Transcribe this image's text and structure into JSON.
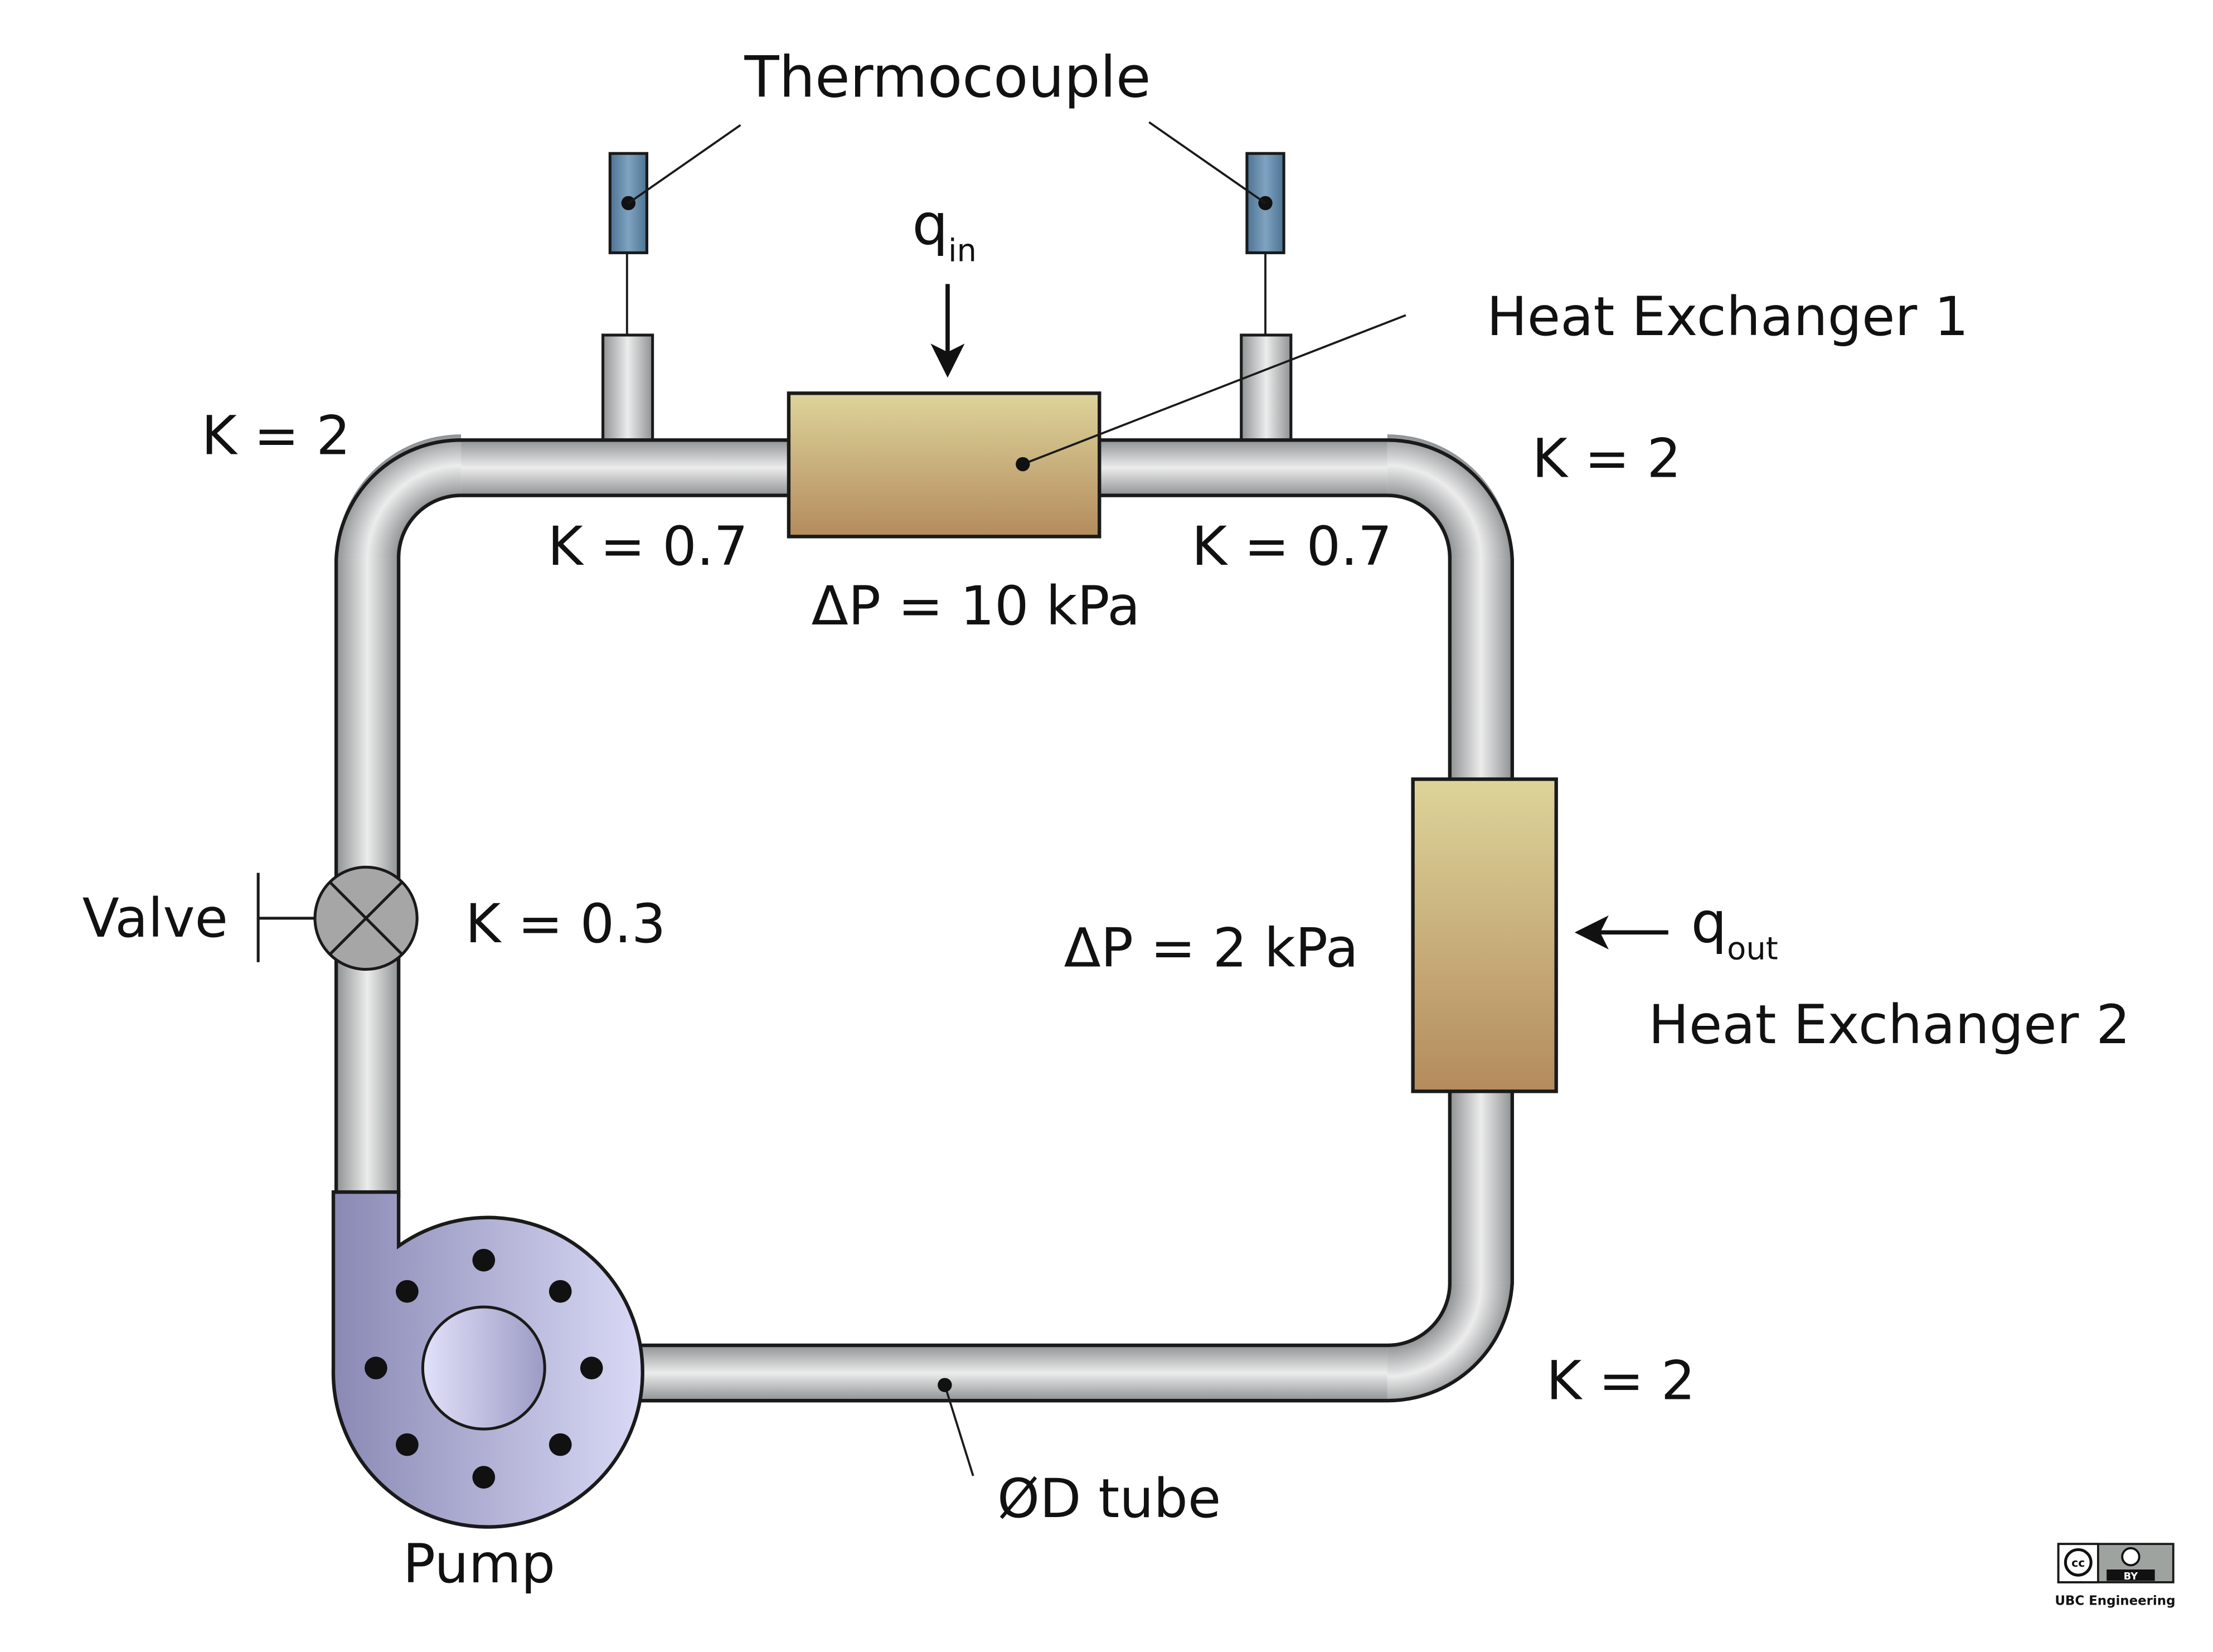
{
  "labels": {
    "thermocouple": "Thermocouple",
    "heat_exchanger_1": "Heat Exchanger 1",
    "heat_exchanger_2": "Heat Exchanger 2",
    "valve": "Valve",
    "pump": "Pump",
    "tube": "ØD tube",
    "q_in_main": "q",
    "q_in_sub": "in",
    "q_out_main": "q",
    "q_out_sub": "out",
    "dp_hx1": "ΔP = 10 kPa",
    "dp_hx2": "ΔP = 2 kPa",
    "k_bend_top_left": "K = 2",
    "k_bend_top_right": "K = 2",
    "k_bend_bottom_right": "K = 2",
    "k_tee_left": "K = 0.7",
    "k_tee_right": "K = 0.7",
    "k_valve": "K = 0.3"
  },
  "license": {
    "cc": "cc",
    "by": "BY",
    "credit": "UBC Engineering"
  },
  "colors": {
    "pipe_light": "#e9eaea",
    "pipe_dark": "#8f9294",
    "heat_exchanger_top": "#ddd49a",
    "heat_exchanger_bottom": "#b48b5d",
    "pump_light": "#ccccf0",
    "pump_dark": "#8a89b4",
    "thermocouple_body": "#5f88a8",
    "valve_fill": "#a6a6a6",
    "outline": "#1a1a1a"
  }
}
